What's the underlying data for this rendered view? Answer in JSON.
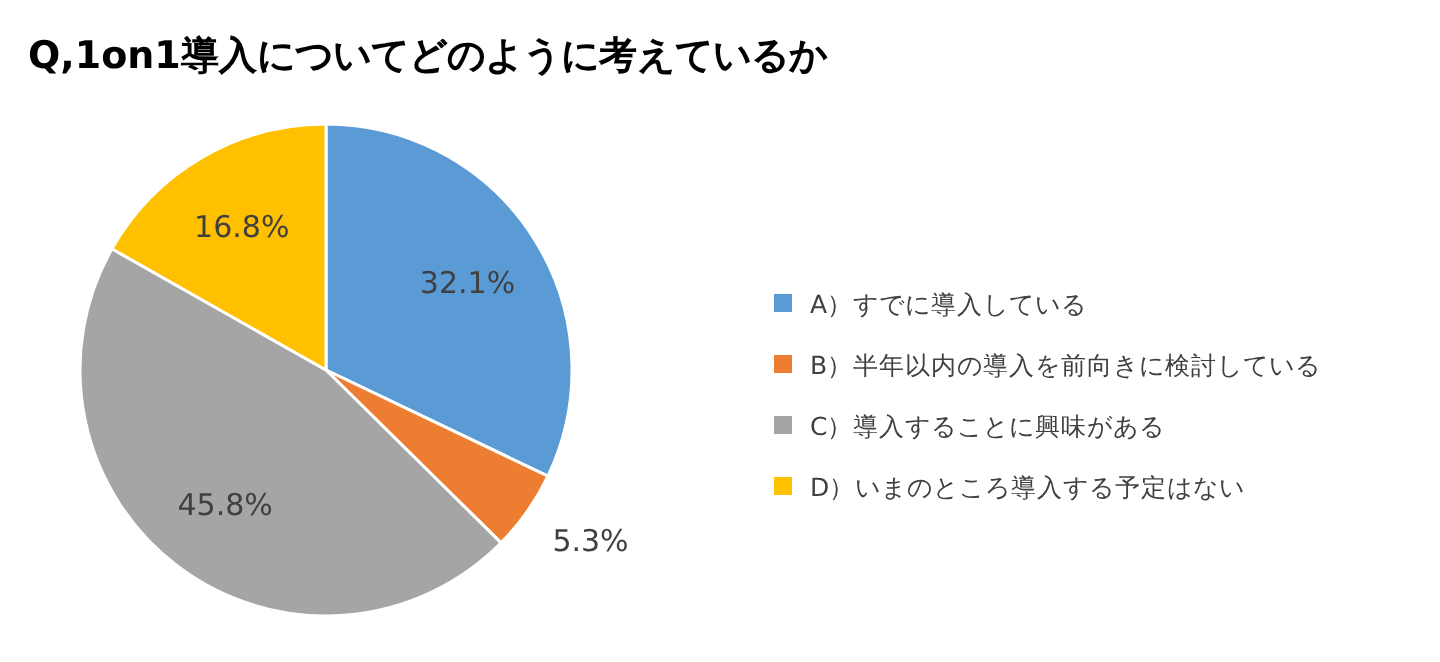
{
  "chart_data": {
    "type": "pie",
    "title": "Q,1on1導入についてどのように考えているか",
    "categories": [
      "A）すでに導入している",
      "B）半年以内の導入を前向きに検討している",
      "C）導入することに興味がある",
      "D）いまのところ導入する予定はない"
    ],
    "values": [
      32.1,
      5.3,
      45.8,
      16.8
    ],
    "colors": [
      "#5b9bd5",
      "#ed7d31",
      "#a5a5a5",
      "#ffc000"
    ],
    "value_labels": [
      "32.1%",
      "5.3%",
      "45.8%",
      "16.8%"
    ],
    "legend": "right"
  }
}
